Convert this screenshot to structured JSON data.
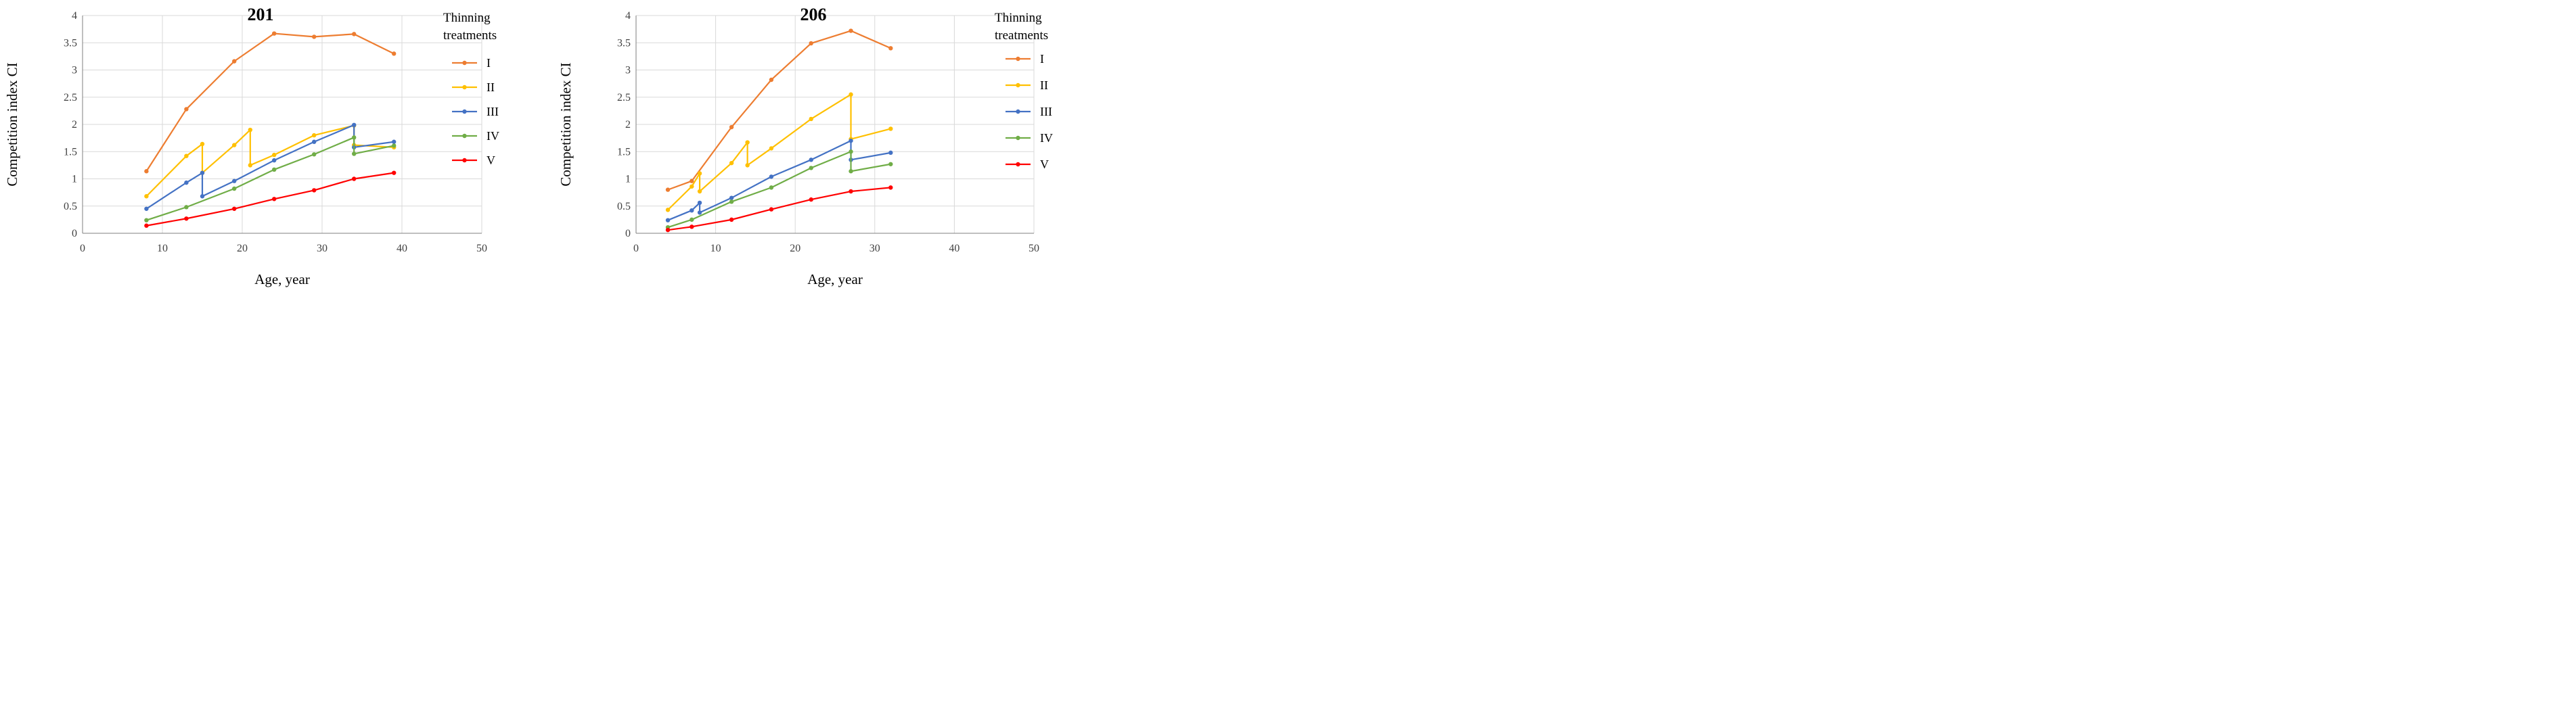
{
  "chart_data": [
    {
      "type": "line",
      "title": "201",
      "xlabel": "Age, year",
      "ylabel": "Competition index CI",
      "xlim": [
        0,
        50
      ],
      "ylim": [
        0,
        4
      ],
      "xticks": [
        "0",
        "10",
        "20",
        "30",
        "40",
        "50"
      ],
      "yticks": [
        "0",
        "0.5",
        "1",
        "1.5",
        "2",
        "2.5",
        "3",
        "3.5",
        "4"
      ],
      "grid": true,
      "legend_title": "Thinning treatments",
      "legend_position": "right",
      "series": [
        {
          "name": "I",
          "color": "#ED7D31",
          "points": [
            [
              8,
              1.14
            ],
            [
              13,
              2.28
            ],
            [
              19,
              3.16
            ],
            [
              24,
              3.67
            ],
            [
              29,
              3.61
            ],
            [
              34,
              3.66
            ],
            [
              39,
              3.3
            ]
          ]
        },
        {
          "name": "II",
          "color": "#FFC000",
          "points": [
            [
              8,
              0.68
            ],
            [
              13,
              1.42
            ],
            [
              15,
              1.64
            ],
            [
              15,
              1.11
            ],
            [
              19,
              1.62
            ],
            [
              21,
              1.9
            ],
            [
              21,
              1.25
            ],
            [
              24,
              1.44
            ],
            [
              29,
              1.8
            ],
            [
              34,
              1.98
            ],
            [
              34,
              1.62
            ],
            [
              39,
              1.58
            ]
          ]
        },
        {
          "name": "III",
          "color": "#4472C4",
          "points": [
            [
              8,
              0.45
            ],
            [
              13,
              0.93
            ],
            [
              15,
              1.11
            ],
            [
              15,
              0.68
            ],
            [
              19,
              0.96
            ],
            [
              24,
              1.34
            ],
            [
              29,
              1.68
            ],
            [
              34,
              1.99
            ],
            [
              34,
              1.58
            ],
            [
              39,
              1.68
            ]
          ]
        },
        {
          "name": "IV",
          "color": "#70AD47",
          "points": [
            [
              8,
              0.24
            ],
            [
              13,
              0.48
            ],
            [
              19,
              0.82
            ],
            [
              24,
              1.17
            ],
            [
              29,
              1.45
            ],
            [
              34,
              1.76
            ],
            [
              34,
              1.46
            ],
            [
              39,
              1.61
            ]
          ]
        },
        {
          "name": "V",
          "color": "#FF0000",
          "points": [
            [
              8,
              0.14
            ],
            [
              13,
              0.27
            ],
            [
              19,
              0.45
            ],
            [
              24,
              0.63
            ],
            [
              29,
              0.79
            ],
            [
              34,
              1.0
            ],
            [
              39,
              1.11
            ]
          ]
        }
      ]
    },
    {
      "type": "line",
      "title": "206",
      "xlabel": "Age, year",
      "ylabel": "Competition index CI",
      "xlim": [
        0,
        50
      ],
      "ylim": [
        0,
        4
      ],
      "xticks": [
        "0",
        "10",
        "20",
        "30",
        "40",
        "50"
      ],
      "yticks": [
        "0",
        "0.5",
        "1",
        "1.5",
        "2",
        "2.5",
        "3",
        "3.5",
        "4"
      ],
      "grid": true,
      "legend_title": "Thinning treatments",
      "legend_position": "right",
      "series": [
        {
          "name": "I",
          "color": "#ED7D31",
          "points": [
            [
              4,
              0.8
            ],
            [
              7,
              0.96
            ],
            [
              12,
              1.95
            ],
            [
              17,
              2.82
            ],
            [
              22,
              3.49
            ],
            [
              27,
              3.72
            ],
            [
              32,
              3.4
            ]
          ]
        },
        {
          "name": "II",
          "color": "#FFC000",
          "points": [
            [
              4,
              0.43
            ],
            [
              7,
              0.86
            ],
            [
              8,
              1.1
            ],
            [
              8,
              0.77
            ],
            [
              12,
              1.29
            ],
            [
              14,
              1.67
            ],
            [
              14,
              1.25
            ],
            [
              17,
              1.56
            ],
            [
              22,
              2.1
            ],
            [
              27,
              2.55
            ],
            [
              27,
              1.73
            ],
            [
              32,
              1.92
            ]
          ]
        },
        {
          "name": "III",
          "color": "#4472C4",
          "points": [
            [
              4,
              0.24
            ],
            [
              7,
              0.42
            ],
            [
              8,
              0.56
            ],
            [
              8,
              0.38
            ],
            [
              12,
              0.65
            ],
            [
              17,
              1.04
            ],
            [
              22,
              1.35
            ],
            [
              27,
              1.7
            ],
            [
              27,
              1.35
            ],
            [
              32,
              1.48
            ]
          ]
        },
        {
          "name": "IV",
          "color": "#70AD47",
          "points": [
            [
              4,
              0.11
            ],
            [
              7,
              0.25
            ],
            [
              12,
              0.58
            ],
            [
              17,
              0.84
            ],
            [
              22,
              1.2
            ],
            [
              27,
              1.5
            ],
            [
              27,
              1.14
            ],
            [
              32,
              1.27
            ]
          ]
        },
        {
          "name": "V",
          "color": "#FF0000",
          "points": [
            [
              4,
              0.06
            ],
            [
              7,
              0.12
            ],
            [
              12,
              0.25
            ],
            [
              17,
              0.44
            ],
            [
              22,
              0.62
            ],
            [
              27,
              0.77
            ],
            [
              32,
              0.84
            ]
          ]
        }
      ]
    }
  ]
}
